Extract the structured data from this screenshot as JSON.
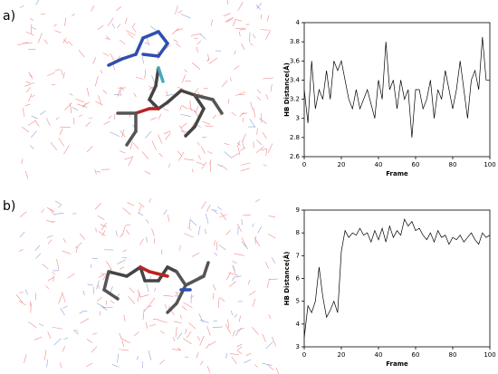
{
  "chart_data": [
    {
      "type": "line",
      "label": "a)",
      "xlabel": "Frame",
      "ylabel": "HB Distance(Å)",
      "x": [
        0,
        2,
        4,
        6,
        8,
        10,
        12,
        14,
        16,
        18,
        20,
        22,
        24,
        26,
        28,
        30,
        32,
        34,
        36,
        38,
        40,
        42,
        44,
        46,
        48,
        50,
        52,
        54,
        56,
        58,
        60,
        62,
        64,
        66,
        68,
        70,
        72,
        74,
        76,
        78,
        80,
        82,
        84,
        86,
        88,
        90,
        92,
        94,
        96,
        98,
        100
      ],
      "series": [
        {
          "color": "#000000",
          "values": [
            3.3,
            2.95,
            3.6,
            3.1,
            3.3,
            3.2,
            3.5,
            3.2,
            3.6,
            3.5,
            3.6,
            3.4,
            3.2,
            3.1,
            3.3,
            3.1,
            3.2,
            3.3,
            3.15,
            3.0,
            3.4,
            3.2,
            3.8,
            3.3,
            3.4,
            3.1,
            3.4,
            3.2,
            3.3,
            2.8,
            3.3,
            3.3,
            3.1,
            3.2,
            3.4,
            3.0,
            3.3,
            3.2,
            3.5,
            3.3,
            3.1,
            3.3,
            3.6,
            3.3,
            3.0,
            3.4,
            3.5,
            3.3,
            3.85,
            3.4,
            3.4
          ]
        }
      ],
      "xlim": [
        0,
        100
      ],
      "xticks": [
        0,
        20,
        40,
        60,
        80,
        100
      ],
      "ylim": [
        2.6,
        4
      ],
      "yticks": [
        2.6,
        2.8,
        3,
        3.2,
        3.4,
        3.6,
        3.8,
        4
      ]
    },
    {
      "type": "line",
      "label": "b)",
      "xlabel": "Frame",
      "ylabel": "HB Distance(Å)",
      "x": [
        0,
        2,
        4,
        6,
        8,
        10,
        12,
        14,
        16,
        18,
        20,
        22,
        24,
        26,
        28,
        30,
        32,
        34,
        36,
        38,
        40,
        42,
        44,
        46,
        48,
        50,
        52,
        54,
        56,
        58,
        60,
        62,
        64,
        66,
        68,
        70,
        72,
        74,
        76,
        78,
        80,
        82,
        84,
        86,
        88,
        90,
        92,
        94,
        96,
        98,
        100
      ],
      "series": [
        {
          "color": "#000000",
          "values": [
            3.4,
            4.8,
            4.5,
            5.0,
            6.5,
            5.2,
            4.3,
            4.6,
            5.0,
            4.5,
            7.2,
            8.1,
            7.8,
            8.0,
            7.9,
            8.2,
            7.9,
            8.0,
            7.6,
            8.1,
            7.7,
            8.2,
            7.6,
            8.3,
            7.8,
            8.1,
            7.9,
            8.6,
            8.3,
            8.5,
            8.1,
            8.2,
            7.9,
            7.7,
            8.0,
            7.6,
            8.1,
            7.8,
            7.9,
            7.5,
            7.8,
            7.7,
            7.9,
            7.6,
            7.8,
            8.0,
            7.7,
            7.5,
            8.0,
            7.8,
            7.9
          ]
        }
      ],
      "xlim": [
        0,
        100
      ],
      "xticks": [
        0,
        20,
        40,
        60,
        80,
        100
      ],
      "ylim": [
        3,
        9
      ],
      "yticks": [
        3,
        4,
        5,
        6,
        7,
        8,
        9
      ]
    }
  ]
}
